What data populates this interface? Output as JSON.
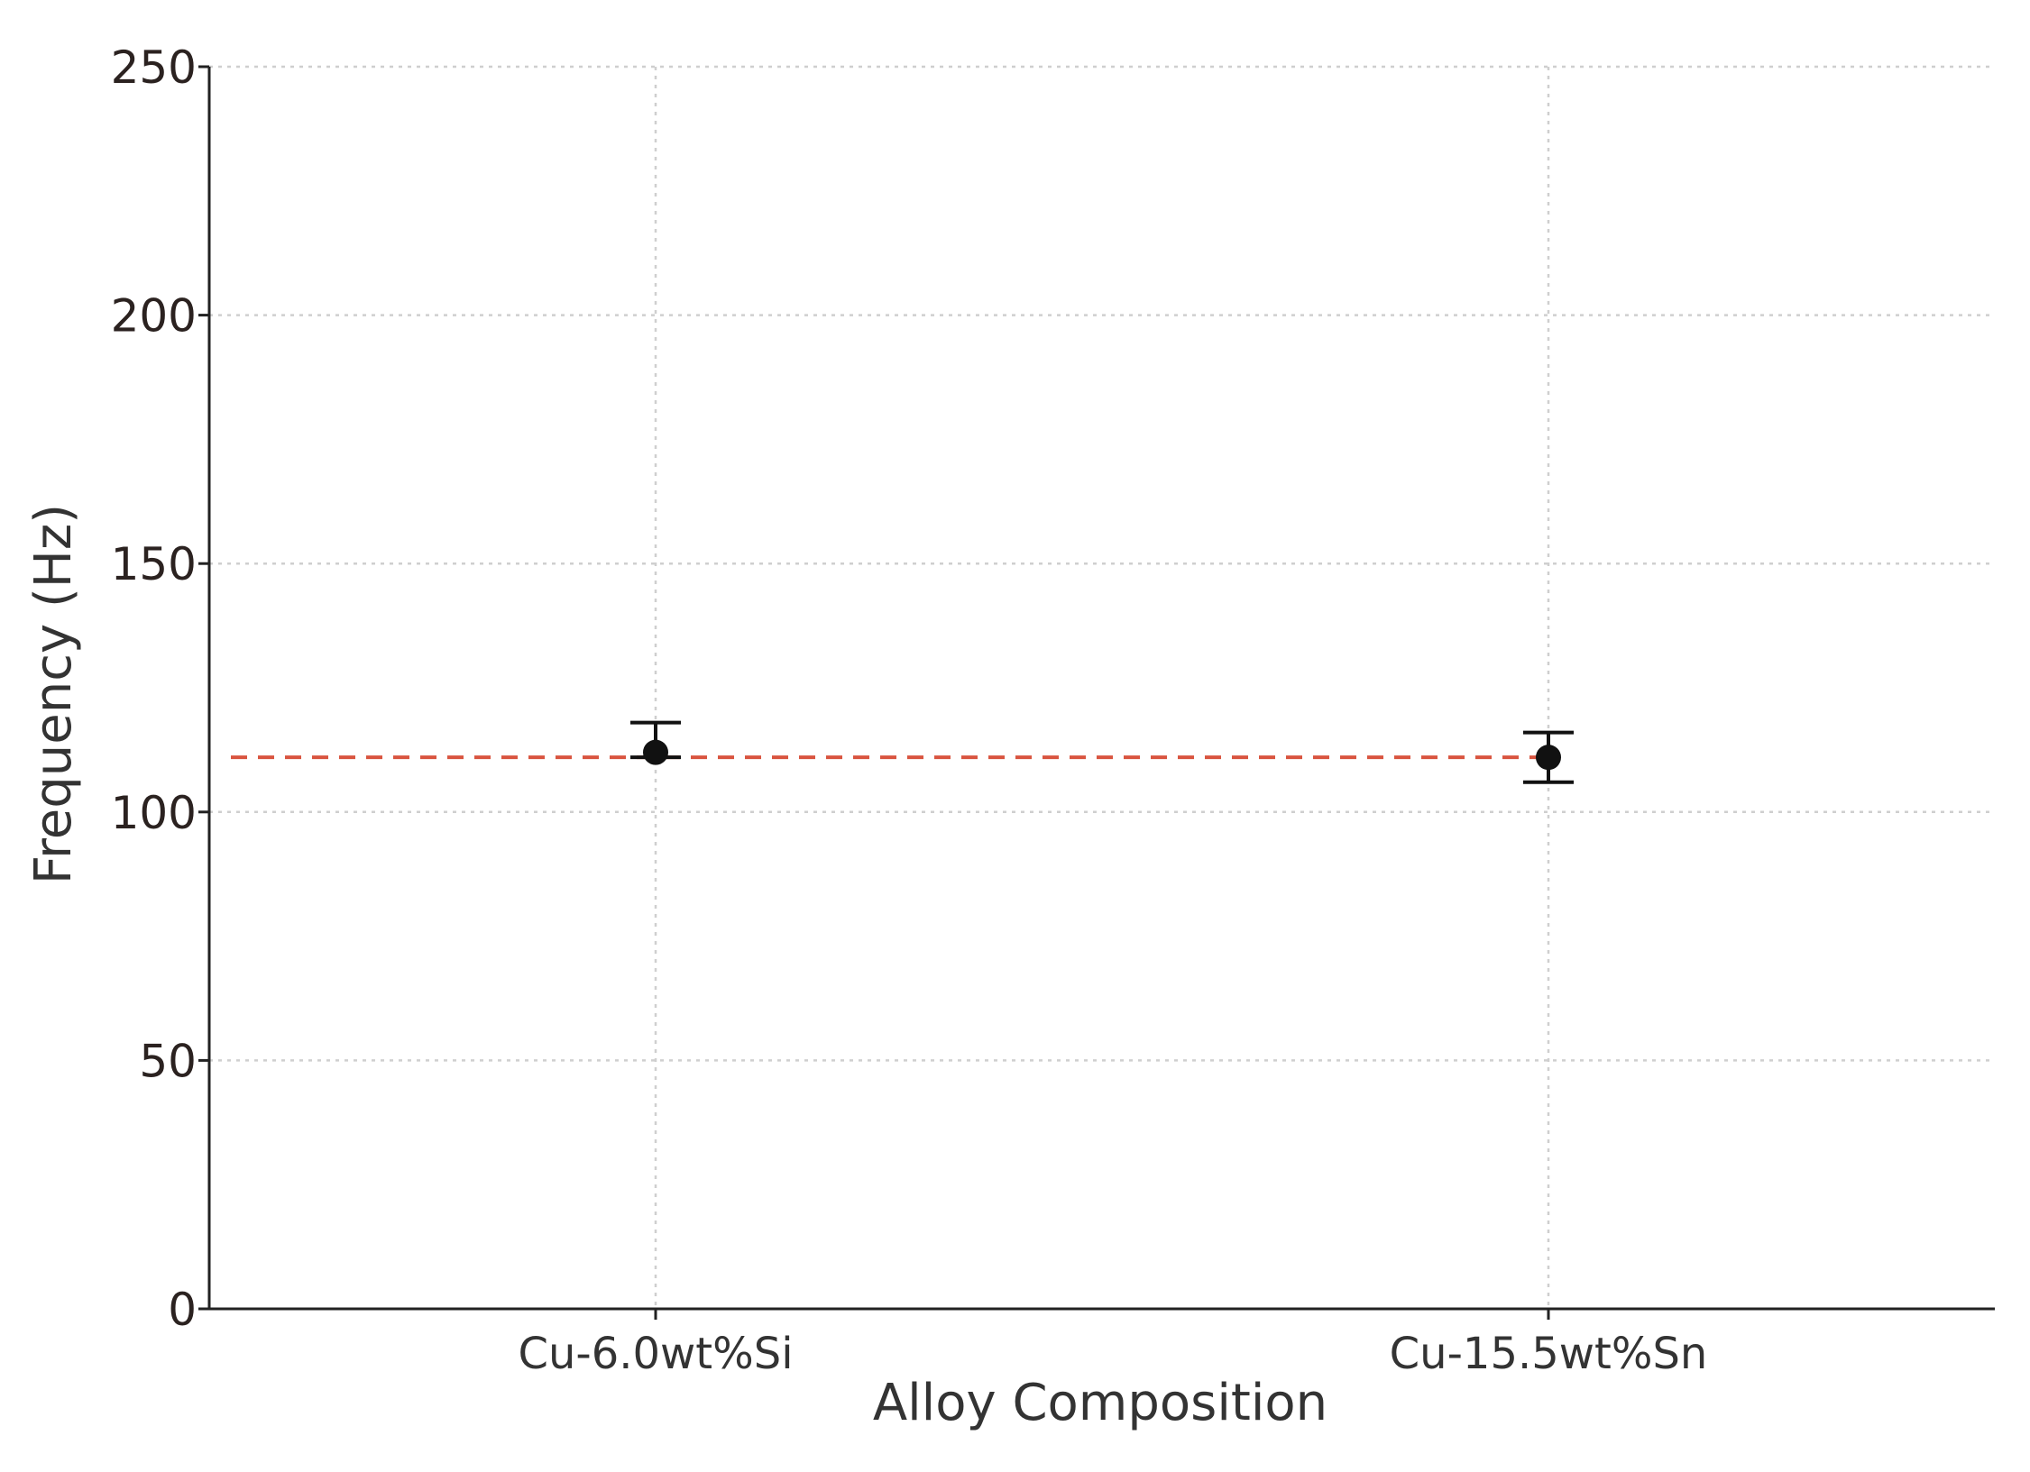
{
  "chart_data": {
    "type": "scatter",
    "title": "",
    "xlabel": "Alloy Composition",
    "ylabel": "Frequency (Hz)",
    "categories": [
      "Cu-6.0wt%Si",
      "Cu-15.5wt%Sn"
    ],
    "series": [
      {
        "values": [
          112,
          111
        ],
        "error_low": [
          111,
          106
        ],
        "error_high": [
          118,
          116
        ]
      }
    ],
    "reference_line": {
      "y": 111,
      "color": "#d9543f",
      "style": "dashed"
    },
    "ylim": [
      0,
      250
    ],
    "yticks": [
      0,
      50,
      100,
      150,
      200,
      250
    ],
    "grid": true,
    "colors": {
      "points": "#111111",
      "axis": "#222222",
      "grid": "#cfcfcf"
    }
  }
}
